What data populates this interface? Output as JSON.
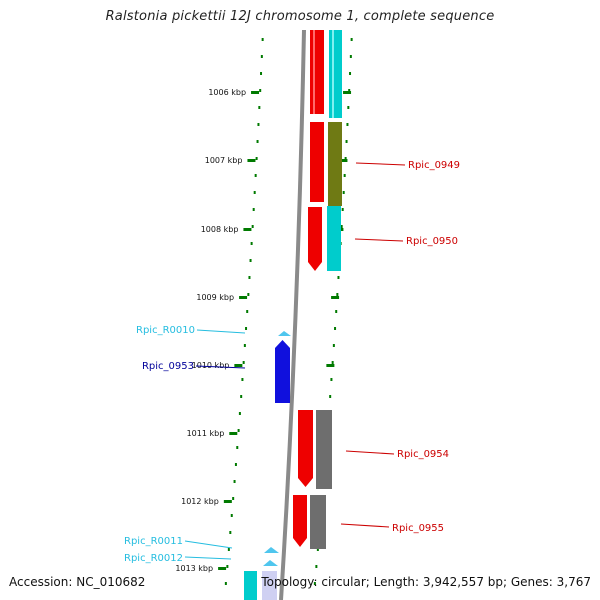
{
  "title": "Ralstonia pickettii 12J chromosome 1, complete sequence",
  "footer": {
    "accession": "Accession: NC_010682",
    "stats": "Topology: circular; Length: 3,942,557 bp; Genes: 3,767"
  },
  "colors": {
    "red": "#ee0000",
    "cyan": "#00cccc",
    "olive": "#6f7a14",
    "gray": "#6e6e6e",
    "blue": "#1010dd",
    "lightblue": "#4fc6ee",
    "lavender": "#cfd0f2",
    "tick_green": "#007a00",
    "label_red": "#cc0000",
    "label_cyan": "#25bde0",
    "label_blue": "#00009a"
  },
  "scale": {
    "unit": "kbp",
    "ticks": [
      "1006 kbp",
      "1007 kbp",
      "1008 kbp",
      "1009 kbp",
      "1010 kbp",
      "1011 kbp",
      "1012 kbp",
      "1013 kbp"
    ]
  },
  "gene_labels": [
    {
      "text": "Rpic_0949",
      "color": "label_red"
    },
    {
      "text": "Rpic_0950",
      "color": "label_red"
    },
    {
      "text": "Rpic_R0010",
      "color": "label_cyan"
    },
    {
      "text": "Rpic_0953",
      "color": "label_blue"
    },
    {
      "text": "Rpic_0954",
      "color": "label_red"
    },
    {
      "text": "Rpic_0955",
      "color": "label_red"
    },
    {
      "text": "Rpic_R0011",
      "color": "label_cyan"
    },
    {
      "text": "Rpic_R0012",
      "color": "label_cyan"
    }
  ]
}
